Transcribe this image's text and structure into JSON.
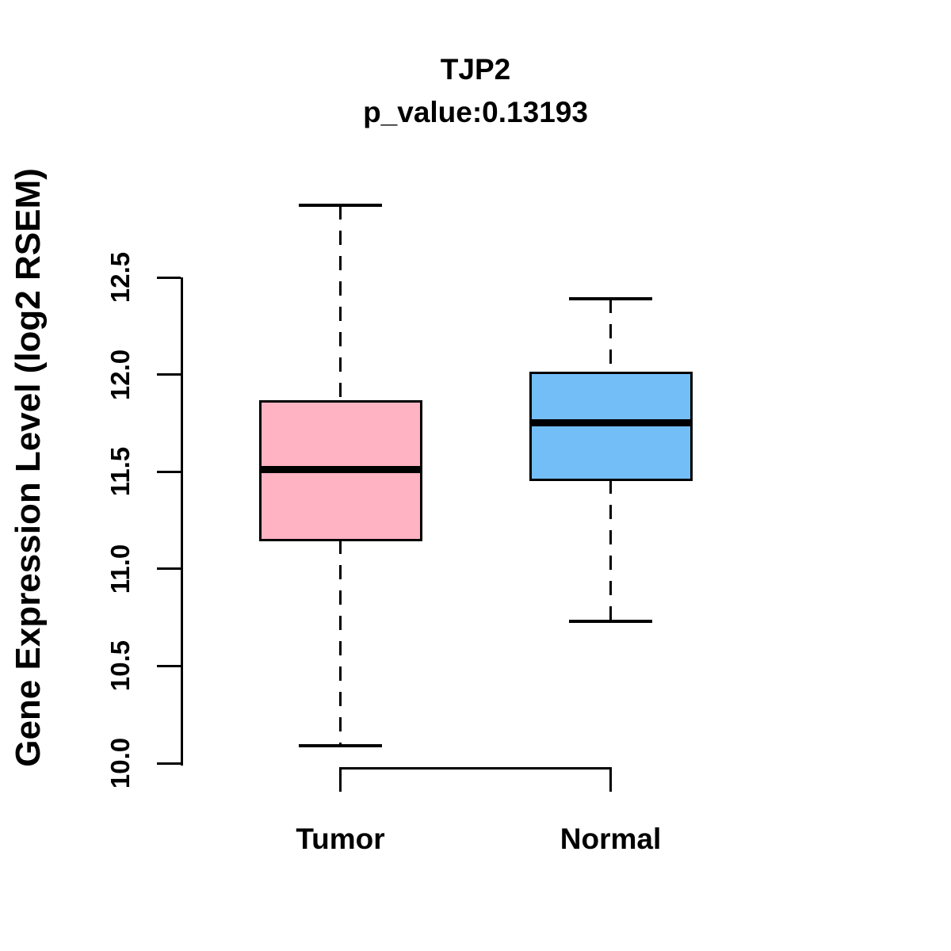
{
  "chart_data": {
    "type": "boxplot",
    "title": "TJP2",
    "subtitle": "p_value:0.13193",
    "xlabel": "",
    "ylabel": "Gene Expression Level (log2 RSEM)",
    "ylim": [
      10.0,
      12.5
    ],
    "yticks": [
      "10.0",
      "10.5",
      "11.0",
      "11.5",
      "12.0",
      "12.5"
    ],
    "grid": false,
    "legend_position": "none",
    "categories": [
      "Tumor",
      "Normal"
    ],
    "series": [
      {
        "name": "Tumor",
        "fill_color": "#FFB3C3",
        "border_color": "#000000",
        "whisker_low": 10.09,
        "q1": 11.15,
        "median": 11.51,
        "q3": 11.86,
        "whisker_high": 12.87
      },
      {
        "name": "Normal",
        "fill_color": "#74BEF8",
        "border_color": "#000000",
        "whisker_low": 10.73,
        "q1": 11.46,
        "median": 11.75,
        "q3": 12.01,
        "whisker_high": 12.39
      }
    ]
  }
}
